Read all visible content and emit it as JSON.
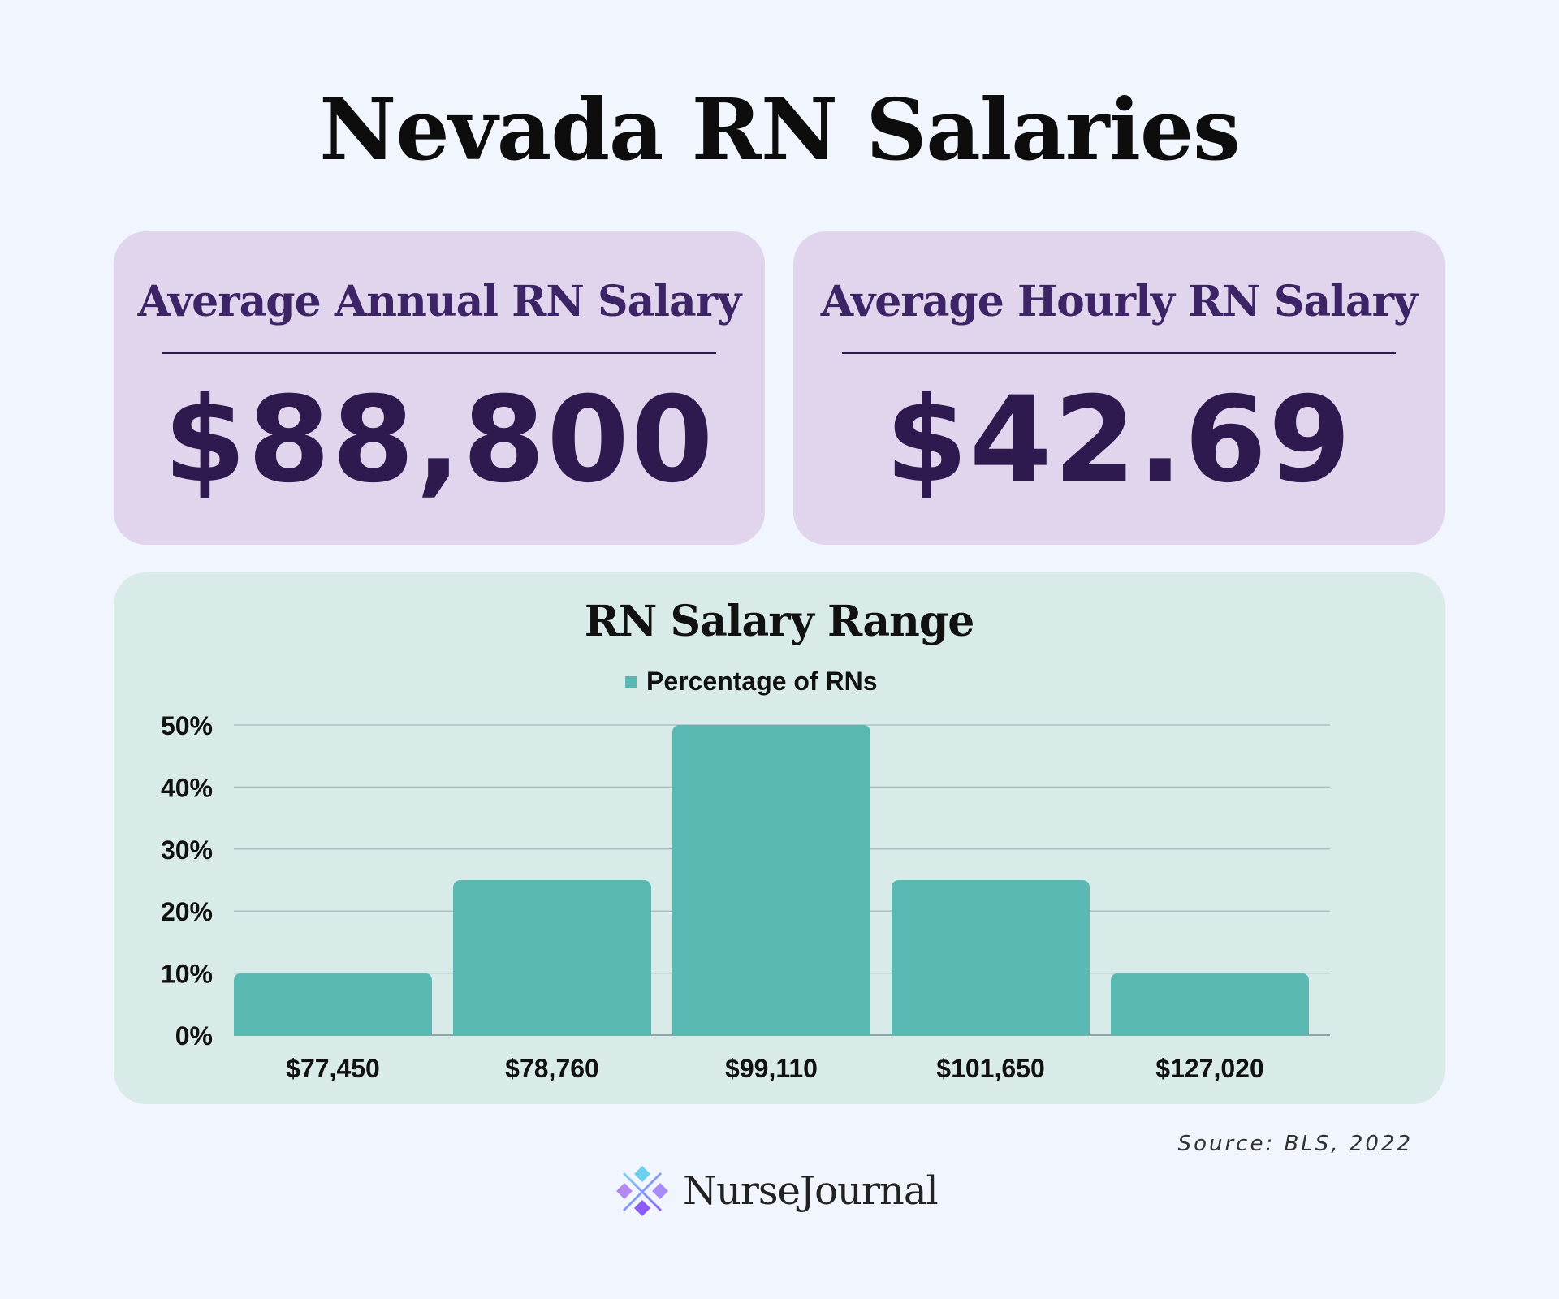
{
  "title": "Nevada RN Salaries",
  "stats": {
    "annual": {
      "label": "Average Annual RN Salary",
      "value": "$88,800"
    },
    "hourly": {
      "label": "Average Hourly RN Salary",
      "value": "$42.69"
    }
  },
  "source": "Source: BLS, 2022",
  "brand": {
    "name": "NurseJournal",
    "logo_icon": "nursejournal-logo-icon"
  },
  "colors": {
    "background": "#f1f5fd",
    "stat_card": "#e0d5ec",
    "stat_text": "#2e1a4f",
    "chart_card": "#d9ebe8",
    "bar": "#5ab8b3"
  },
  "chart_data": {
    "type": "bar",
    "title": "RN Salary Range",
    "categories": [
      "$77,450",
      "$78,760",
      "$99,110",
      "$101,650",
      "$127,020"
    ],
    "series": [
      {
        "name": "Percentage of RNs",
        "values": [
          10,
          25,
          50,
          25,
          10
        ]
      }
    ],
    "ylim": [
      0,
      50
    ],
    "yticks": [
      "0%",
      "10%",
      "20%",
      "30%",
      "40%",
      "50%"
    ],
    "xlabel": "",
    "ylabel": "",
    "grid": true,
    "legend": "top-center"
  }
}
